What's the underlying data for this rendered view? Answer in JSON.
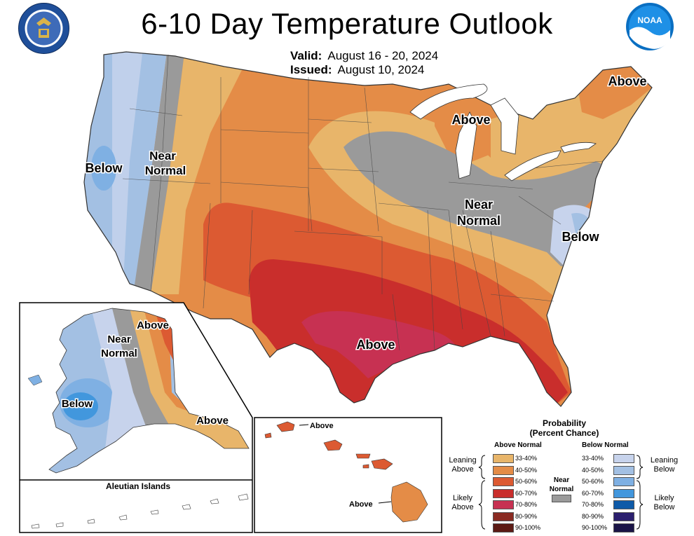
{
  "title": "6-10 Day Temperature Outlook",
  "valid_label": "Valid:",
  "valid_value": "August 16 - 20, 2024",
  "issued_label": "Issued:",
  "issued_value": "August 10, 2024",
  "logos": {
    "left": "Department of Commerce - United States of America",
    "right": "NOAA"
  },
  "map_labels": {
    "above": "Above",
    "below": "Below",
    "near_normal_1": "Near",
    "near_normal_2": "Normal",
    "aleutian": "Aleutian Islands"
  },
  "legend": {
    "title_1": "Probability",
    "title_2": "(Percent Chance)",
    "above_header": "Above Normal",
    "below_header": "Below Normal",
    "leaning_above_1": "Leaning",
    "leaning_above_2": "Above",
    "likely_above_1": "Likely",
    "likely_above_2": "Above",
    "leaning_below_1": "Leaning",
    "leaning_below_2": "Below",
    "likely_below_1": "Likely",
    "likely_below_2": "Below",
    "near_1": "Near",
    "near_2": "Normal",
    "above_rows": [
      {
        "range": "33-40%",
        "color": "#e8b56a"
      },
      {
        "range": "40-50%",
        "color": "#e48c47"
      },
      {
        "range": "50-60%",
        "color": "#dc5a32"
      },
      {
        "range": "60-70%",
        "color": "#c92e2c"
      },
      {
        "range": "70-80%",
        "color": "#c73152"
      },
      {
        "range": "80-90%",
        "color": "#8a2a22"
      },
      {
        "range": "90-100%",
        "color": "#5c1a14"
      }
    ],
    "below_rows": [
      {
        "range": "33-40%",
        "color": "#c7d3ec"
      },
      {
        "range": "40-50%",
        "color": "#a3c0e3"
      },
      {
        "range": "50-60%",
        "color": "#7fb0e3"
      },
      {
        "range": "60-70%",
        "color": "#4297dd"
      },
      {
        "range": "70-80%",
        "color": "#0e5aa8"
      },
      {
        "range": "80-90%",
        "color": "#2b1f6e"
      },
      {
        "range": "90-100%",
        "color": "#1a1446"
      }
    ],
    "near_color": "#9a9a9a"
  }
}
